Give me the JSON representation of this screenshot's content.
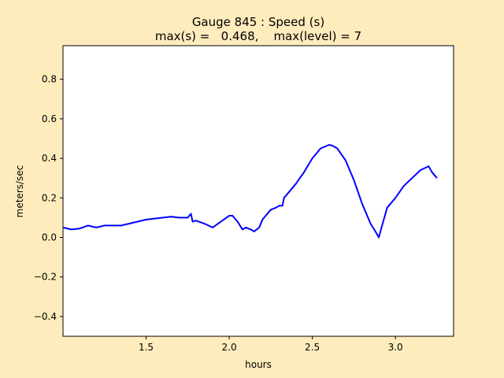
{
  "chart_data": {
    "type": "line",
    "title": "Gauge 845 : Speed (s)",
    "subtitle": "max(s) =   0.468,    max(level) = 7",
    "xlabel": "hours",
    "ylabel": "meters/sec",
    "xlim": [
      1.0,
      3.35
    ],
    "ylim": [
      -0.5,
      0.97
    ],
    "x_ticks": [
      1.5,
      2.0,
      2.5,
      3.0
    ],
    "x_tick_labels": [
      "1.5",
      "2.0",
      "2.5",
      "3.0"
    ],
    "y_ticks": [
      -0.4,
      -0.2,
      0.0,
      0.2,
      0.4,
      0.6,
      0.8
    ],
    "y_tick_labels": [
      "−0.4",
      "−0.2",
      "0.0",
      "0.2",
      "0.4",
      "0.6",
      "0.8"
    ],
    "grid": false,
    "series": [
      {
        "color": "#0000ff",
        "x": [
          1.0,
          1.05,
          1.1,
          1.15,
          1.2,
          1.25,
          1.3,
          1.35,
          1.4,
          1.45,
          1.5,
          1.55,
          1.6,
          1.65,
          1.7,
          1.75,
          1.77,
          1.78,
          1.8,
          1.85,
          1.9,
          1.95,
          2.0,
          2.02,
          2.05,
          2.08,
          2.1,
          2.13,
          2.15,
          2.18,
          2.2,
          2.22,
          2.25,
          2.28,
          2.3,
          2.32,
          2.33,
          2.35,
          2.4,
          2.45,
          2.5,
          2.55,
          2.6,
          2.62,
          2.65,
          2.7,
          2.75,
          2.8,
          2.85,
          2.88,
          2.9,
          2.92,
          2.95,
          3.0,
          3.05,
          3.1,
          3.15,
          3.2,
          3.22,
          3.25
        ],
        "y": [
          0.05,
          0.04,
          0.045,
          0.06,
          0.05,
          0.06,
          0.06,
          0.06,
          0.07,
          0.08,
          0.09,
          0.095,
          0.1,
          0.105,
          0.1,
          0.1,
          0.12,
          0.08,
          0.085,
          0.07,
          0.05,
          0.08,
          0.11,
          0.11,
          0.08,
          0.04,
          0.05,
          0.04,
          0.03,
          0.05,
          0.09,
          0.11,
          0.14,
          0.15,
          0.16,
          0.16,
          0.2,
          0.22,
          0.27,
          0.33,
          0.4,
          0.45,
          0.468,
          0.465,
          0.45,
          0.39,
          0.29,
          0.17,
          0.07,
          0.03,
          0.0,
          0.06,
          0.15,
          0.2,
          0.26,
          0.3,
          0.34,
          0.36,
          0.33,
          0.3
        ]
      }
    ]
  }
}
